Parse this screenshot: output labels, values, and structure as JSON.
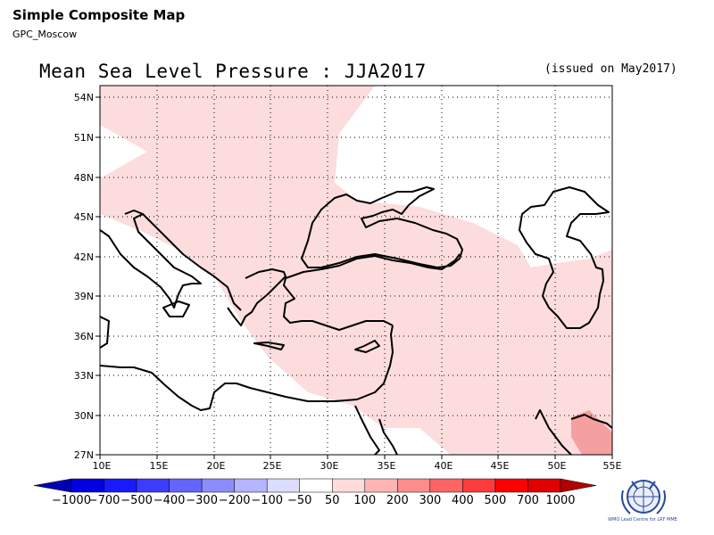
{
  "header": {
    "title": "Simple Composite Map",
    "source": "GPC_Moscow"
  },
  "map": {
    "title": "Mean Sea Level Pressure : JJA2017",
    "issued": "(issued on May2017)",
    "lat_labels": [
      "54N",
      "51N",
      "48N",
      "45N",
      "42N",
      "39N",
      "36N",
      "33N",
      "30N",
      "27N"
    ],
    "lon_labels": [
      "10E",
      "15E",
      "20E",
      "25E",
      "30E",
      "35E",
      "40E",
      "45E",
      "50E",
      "55E"
    ],
    "lon_range": [
      10,
      55
    ],
    "lat_range": [
      27,
      55
    ],
    "grid": "dotted",
    "shading_colors": {
      "50_100": "#fcdcdc",
      "200_300": "#f5a0a0"
    }
  },
  "colorbar": {
    "labels": [
      "−1000",
      "−700",
      "−500",
      "−400",
      "−300",
      "−200",
      "−100",
      "−50",
      "50",
      "100",
      "200",
      "300",
      "400",
      "500",
      "700",
      "1000"
    ],
    "colors": [
      "#0000b4",
      "#0000e0",
      "#1a1aff",
      "#3c3cff",
      "#6464ff",
      "#8c8cff",
      "#b4b4ff",
      "#dcdcff",
      "#ffffff",
      "#ffdcdc",
      "#ffb4b4",
      "#ff8c8c",
      "#ff6464",
      "#ff3c3c",
      "#ff0000",
      "#e00000",
      "#b40000"
    ]
  },
  "logo": {
    "text": "WMO Lead Centre for LRF MME",
    "icon": "wmo-emblem-icon"
  }
}
